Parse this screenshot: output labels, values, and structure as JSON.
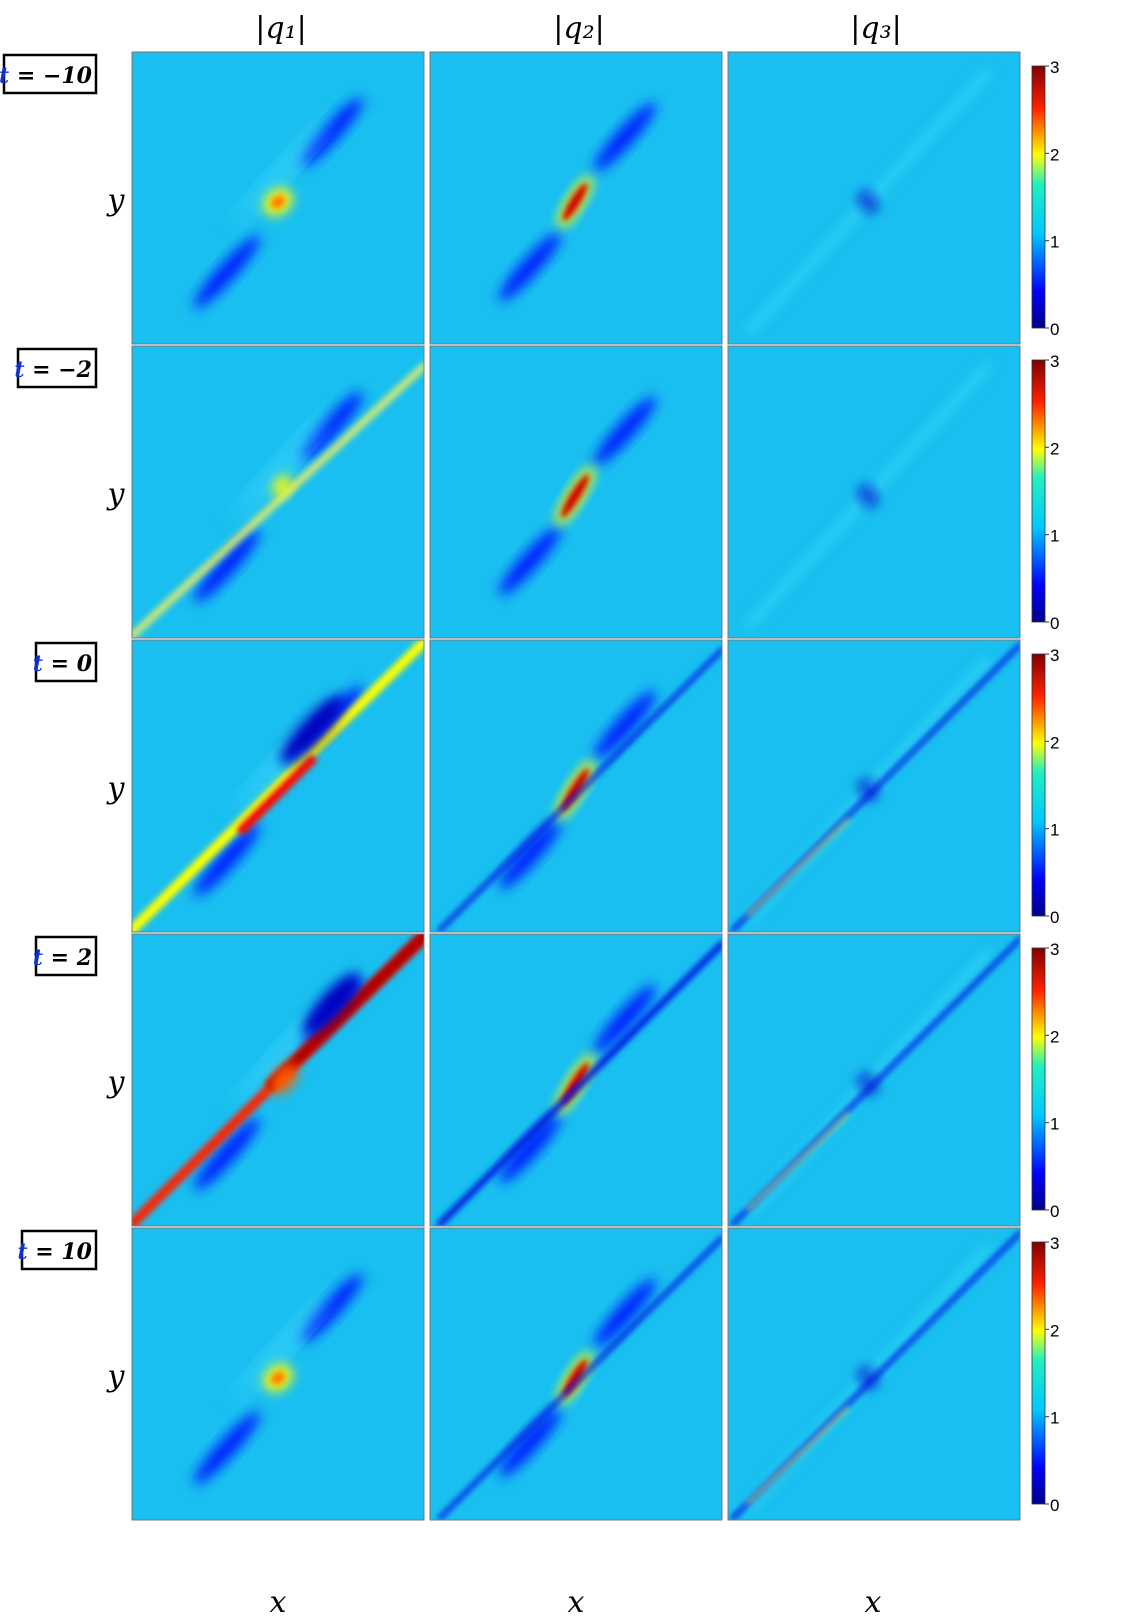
{
  "column_headers": [
    "|q₁|",
    "|q₂|",
    "|q₃|"
  ],
  "x_label": "x",
  "y_label": "y",
  "colorbar": {
    "ticks": [
      "0",
      "1",
      "2",
      "3"
    ],
    "colormap": [
      "#00008b",
      "#0000ff",
      "#00c8ff",
      "#ffff00",
      "#ff0000",
      "#800000"
    ],
    "background_level_color": "#18bff0"
  },
  "rows": [
    {
      "label_prefix": "t",
      "label_value": " = −10"
    },
    {
      "label_prefix": "t",
      "label_value": " = −2"
    },
    {
      "label_prefix": "t",
      "label_value": " = 0"
    },
    {
      "label_prefix": "t",
      "label_value": " = 2"
    },
    {
      "label_prefix": "t",
      "label_value": " = 10"
    }
  ]
}
